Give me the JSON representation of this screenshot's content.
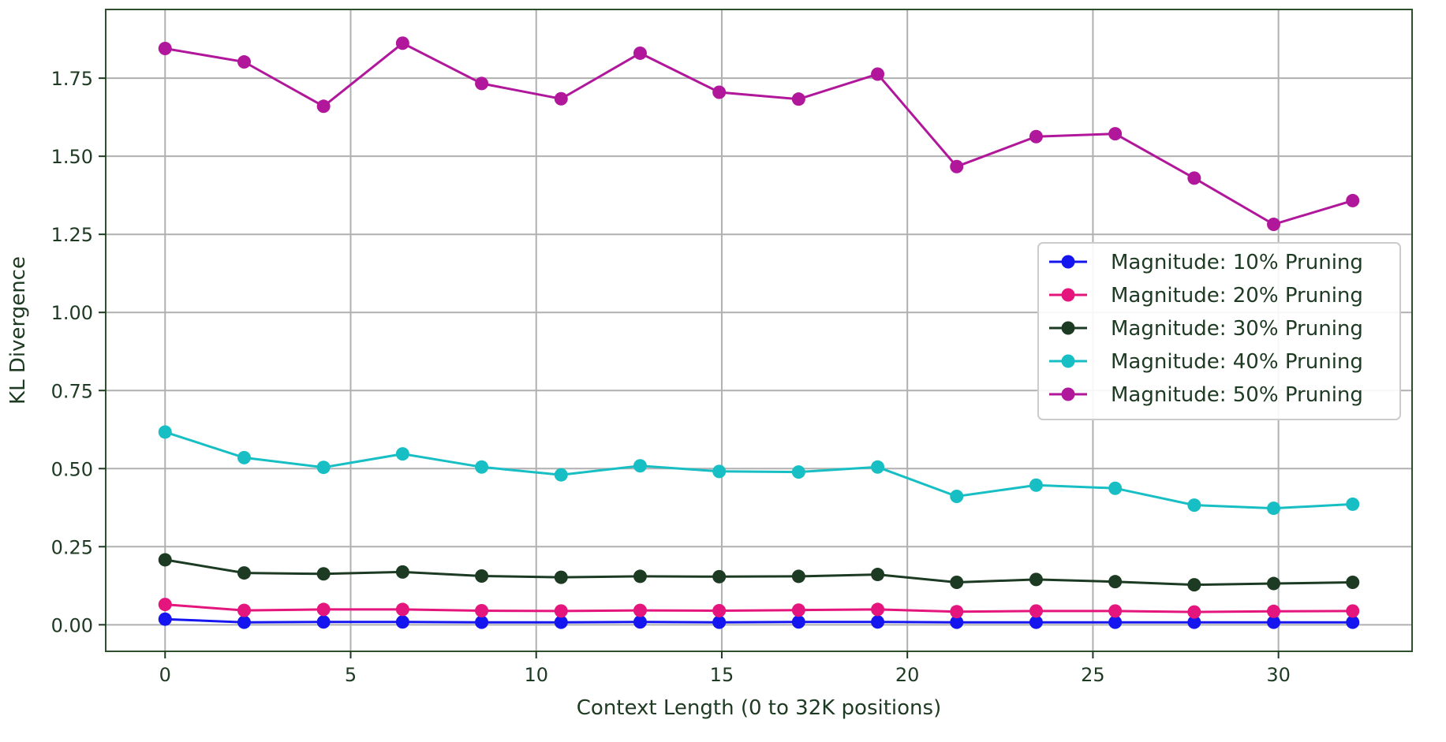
{
  "chart_data": {
    "type": "line",
    "title": "",
    "xlabel": "Context Length (0 to 32K positions)",
    "ylabel": "KL Divergence",
    "xlim": [
      -1.6,
      33.6
    ],
    "ylim": [
      -0.085,
      1.97
    ],
    "x_ticks": [
      0,
      5,
      10,
      15,
      20,
      25,
      30
    ],
    "y_ticks": [
      0.0,
      0.25,
      0.5,
      0.75,
      1.0,
      1.25,
      1.5,
      1.75
    ],
    "grid": true,
    "legend_position": "center-right",
    "x": [
      0,
      2.13,
      4.27,
      6.4,
      8.53,
      10.67,
      12.8,
      14.93,
      17.07,
      19.2,
      21.33,
      23.47,
      25.6,
      27.73,
      29.87,
      32
    ],
    "series": [
      {
        "name": "Magnitude: 10% Pruning",
        "color": "#1515f0",
        "values": [
          0.018,
          0.008,
          0.009,
          0.009,
          0.008,
          0.008,
          0.009,
          0.008,
          0.009,
          0.009,
          0.008,
          0.008,
          0.008,
          0.008,
          0.008,
          0.008
        ]
      },
      {
        "name": "Magnitude: 20% Pruning",
        "color": "#e4157c",
        "values": [
          0.065,
          0.046,
          0.049,
          0.049,
          0.045,
          0.044,
          0.046,
          0.045,
          0.047,
          0.049,
          0.042,
          0.044,
          0.044,
          0.041,
          0.043,
          0.044
        ]
      },
      {
        "name": "Magnitude: 30% Pruning",
        "color": "#1d3b23",
        "values": [
          0.208,
          0.166,
          0.163,
          0.169,
          0.156,
          0.152,
          0.155,
          0.154,
          0.155,
          0.161,
          0.136,
          0.145,
          0.138,
          0.128,
          0.132,
          0.136
        ]
      },
      {
        "name": "Magnitude: 40% Pruning",
        "color": "#17bfc4",
        "values": [
          0.617,
          0.535,
          0.504,
          0.547,
          0.505,
          0.48,
          0.509,
          0.491,
          0.489,
          0.505,
          0.411,
          0.447,
          0.437,
          0.383,
          0.373,
          0.386
        ]
      },
      {
        "name": "Magnitude: 50% Pruning",
        "color": "#b0179a",
        "values": [
          1.845,
          1.802,
          1.66,
          1.862,
          1.733,
          1.684,
          1.83,
          1.705,
          1.683,
          1.763,
          1.467,
          1.563,
          1.572,
          1.43,
          1.282,
          1.358
        ]
      }
    ]
  }
}
